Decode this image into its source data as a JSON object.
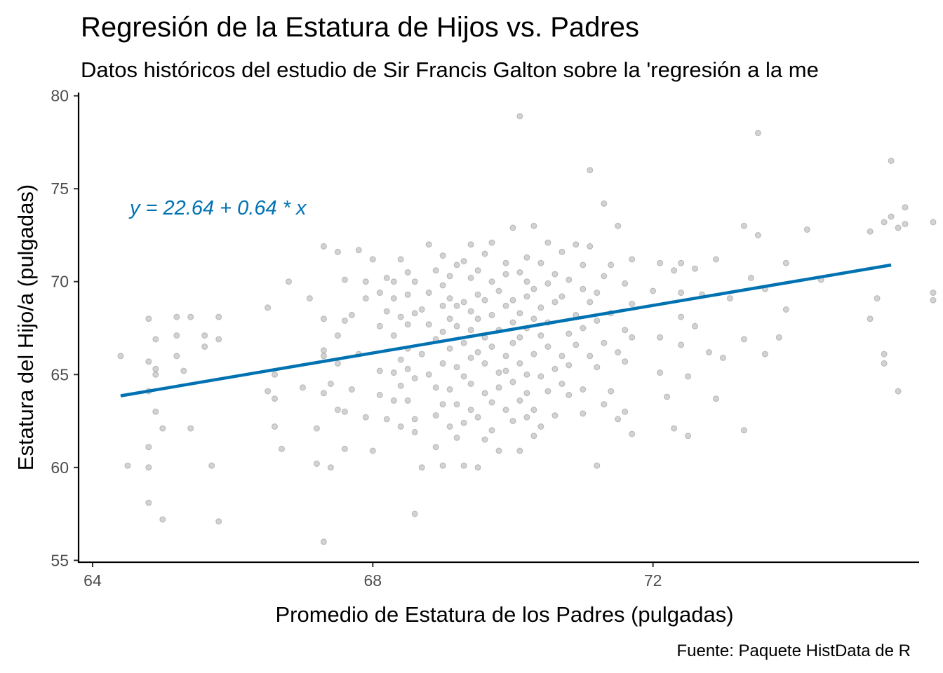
{
  "chart_data": {
    "type": "scatter",
    "title": "Regresión de la Estatura de Hijos vs. Padres",
    "subtitle": "Datos históricos del estudio de Sir Francis Galton sobre la 'regresión a la me",
    "xlabel": "Promedio de Estatura de los Padres (pulgadas)",
    "ylabel": "Estatura del Hijo/a (pulgadas)",
    "caption": "Fuente: Paquete HistData de R",
    "equation": "y = 22.64 + 0.64 * x",
    "xlim": [
      63.8,
      75.8
    ],
    "ylim": [
      54.9,
      80.1
    ],
    "xticks": [
      "64",
      "68",
      "72"
    ],
    "yticks": [
      "55",
      "60",
      "65",
      "70",
      "75",
      "80"
    ],
    "grid": false,
    "point_color": "#7f7f7f",
    "line_color": "#0072b2",
    "regression": {
      "intercept": 22.64,
      "slope": 0.64,
      "x_range": [
        64.4,
        75.4
      ]
    },
    "series": [
      {
        "points": [
          [
            64.4,
            66.0
          ],
          [
            64.5,
            60.1
          ],
          [
            64.8,
            64.1
          ],
          [
            64.8,
            65.7
          ],
          [
            64.8,
            68.0
          ],
          [
            64.8,
            61.1
          ],
          [
            64.8,
            60.0
          ],
          [
            64.8,
            58.1
          ],
          [
            64.9,
            63.0
          ],
          [
            64.9,
            65.0
          ],
          [
            64.9,
            66.9
          ],
          [
            64.9,
            65.3
          ],
          [
            65.0,
            62.1
          ],
          [
            65.0,
            57.2
          ],
          [
            65.2,
            66.0
          ],
          [
            65.2,
            68.1
          ],
          [
            65.2,
            67.1
          ],
          [
            65.3,
            65.2
          ],
          [
            65.4,
            68.1
          ],
          [
            65.4,
            62.1
          ],
          [
            65.6,
            67.1
          ],
          [
            65.6,
            66.5
          ],
          [
            65.7,
            60.1
          ],
          [
            65.8,
            66.9
          ],
          [
            65.8,
            68.1
          ],
          [
            65.8,
            57.1
          ],
          [
            66.5,
            68.6
          ],
          [
            66.5,
            64.1
          ],
          [
            66.6,
            63.7
          ],
          [
            66.6,
            62.2
          ],
          [
            66.6,
            65.0
          ],
          [
            66.7,
            61.0
          ],
          [
            66.8,
            70.0
          ],
          [
            67.1,
            69.1
          ],
          [
            67.0,
            64.3
          ],
          [
            67.2,
            62.1
          ],
          [
            67.2,
            60.2
          ],
          [
            67.3,
            66.3
          ],
          [
            67.3,
            68.0
          ],
          [
            67.3,
            71.9
          ],
          [
            67.3,
            66.0
          ],
          [
            67.3,
            64.0
          ],
          [
            67.3,
            56.0
          ],
          [
            67.4,
            60.0
          ],
          [
            67.4,
            64.5
          ],
          [
            67.5,
            67.1
          ],
          [
            67.5,
            71.6
          ],
          [
            67.5,
            65.6
          ],
          [
            67.5,
            63.1
          ],
          [
            67.6,
            63.0
          ],
          [
            67.6,
            61.0
          ],
          [
            67.6,
            67.9
          ],
          [
            67.6,
            70.1
          ],
          [
            67.7,
            68.2
          ],
          [
            67.7,
            64.2
          ],
          [
            67.8,
            71.7
          ],
          [
            67.8,
            66.1
          ],
          [
            67.9,
            62.7
          ],
          [
            67.9,
            70.0
          ],
          [
            67.9,
            69.1
          ],
          [
            68.0,
            71.2
          ],
          [
            68.0,
            60.9
          ],
          [
            68.1,
            69.4
          ],
          [
            68.1,
            65.2
          ],
          [
            68.1,
            67.6
          ],
          [
            68.1,
            63.9
          ],
          [
            68.2,
            70.2
          ],
          [
            68.2,
            62.6
          ],
          [
            68.2,
            68.4
          ],
          [
            68.3,
            70.0
          ],
          [
            68.3,
            63.6
          ],
          [
            68.3,
            65.1
          ],
          [
            68.3,
            69.1
          ],
          [
            68.3,
            67.1
          ],
          [
            68.4,
            68.1
          ],
          [
            68.4,
            71.2
          ],
          [
            68.4,
            65.8
          ],
          [
            68.4,
            62.2
          ],
          [
            68.4,
            64.4
          ],
          [
            68.5,
            67.7
          ],
          [
            68.5,
            70.5
          ],
          [
            68.5,
            63.6
          ],
          [
            68.5,
            66.4
          ],
          [
            68.5,
            69.3
          ],
          [
            68.5,
            65.3
          ],
          [
            68.6,
            68.3
          ],
          [
            68.6,
            61.9
          ],
          [
            68.6,
            62.6
          ],
          [
            68.6,
            64.8
          ],
          [
            68.6,
            70.0
          ],
          [
            68.6,
            57.5
          ],
          [
            68.7,
            68.5
          ],
          [
            68.7,
            66.1
          ],
          [
            68.7,
            60.0
          ],
          [
            68.8,
            67.7
          ],
          [
            68.8,
            72.0
          ],
          [
            68.8,
            69.4
          ],
          [
            68.8,
            65.0
          ],
          [
            68.9,
            64.3
          ],
          [
            68.9,
            66.9
          ],
          [
            68.9,
            62.8
          ],
          [
            68.9,
            70.6
          ],
          [
            68.9,
            61.1
          ],
          [
            69.0,
            68.7
          ],
          [
            69.0,
            65.6
          ],
          [
            69.0,
            63.4
          ],
          [
            69.0,
            67.3
          ],
          [
            69.0,
            69.8
          ],
          [
            69.0,
            71.4
          ],
          [
            69.0,
            60.1
          ],
          [
            69.1,
            69.1
          ],
          [
            69.1,
            66.4
          ],
          [
            69.1,
            64.2
          ],
          [
            69.1,
            62.2
          ],
          [
            69.1,
            68.0
          ],
          [
            69.1,
            70.3
          ],
          [
            69.2,
            67.6
          ],
          [
            69.2,
            65.4
          ],
          [
            69.2,
            70.9
          ],
          [
            69.2,
            63.4
          ],
          [
            69.2,
            61.6
          ],
          [
            69.2,
            68.7
          ],
          [
            69.3,
            68.9
          ],
          [
            69.3,
            64.9
          ],
          [
            69.3,
            71.1
          ],
          [
            69.3,
            66.7
          ],
          [
            69.3,
            62.4
          ],
          [
            69.3,
            60.1
          ],
          [
            69.4,
            65.9
          ],
          [
            69.4,
            68.4
          ],
          [
            69.4,
            70.2
          ],
          [
            69.4,
            63.1
          ],
          [
            69.4,
            72.0
          ],
          [
            69.4,
            67.4
          ],
          [
            69.4,
            64.5
          ],
          [
            69.5,
            69.3
          ],
          [
            69.5,
            66.2
          ],
          [
            69.5,
            62.7
          ],
          [
            69.5,
            70.6
          ],
          [
            69.5,
            68.0
          ],
          [
            69.5,
            60.0
          ],
          [
            69.6,
            67.0
          ],
          [
            69.6,
            64.0
          ],
          [
            69.6,
            71.5
          ],
          [
            69.6,
            65.6
          ],
          [
            69.6,
            69.0
          ],
          [
            69.6,
            61.5
          ],
          [
            69.7,
            68.2
          ],
          [
            69.7,
            63.5
          ],
          [
            69.7,
            66.5
          ],
          [
            69.7,
            70.0
          ],
          [
            69.7,
            72.1
          ],
          [
            69.7,
            62.0
          ],
          [
            69.8,
            67.4
          ],
          [
            69.8,
            65.1
          ],
          [
            69.8,
            69.5
          ],
          [
            69.8,
            64.3
          ],
          [
            69.8,
            60.9
          ],
          [
            69.9,
            70.4
          ],
          [
            69.9,
            68.7
          ],
          [
            69.9,
            66.0
          ],
          [
            69.9,
            63.1
          ],
          [
            69.9,
            71.0
          ],
          [
            69.9,
            65.2
          ],
          [
            70.0,
            67.8
          ],
          [
            70.0,
            64.6
          ],
          [
            70.0,
            69.0
          ],
          [
            70.0,
            62.5
          ],
          [
            70.0,
            66.7
          ],
          [
            70.0,
            72.9
          ],
          [
            70.1,
            68.3
          ],
          [
            70.1,
            65.6
          ],
          [
            70.1,
            70.5
          ],
          [
            70.1,
            63.6
          ],
          [
            70.1,
            78.9
          ],
          [
            70.1,
            67.0
          ],
          [
            70.1,
            60.9
          ],
          [
            70.2,
            69.2
          ],
          [
            70.2,
            65.0
          ],
          [
            70.2,
            71.3
          ],
          [
            70.2,
            64.0
          ],
          [
            70.2,
            67.5
          ],
          [
            70.2,
            62.7
          ],
          [
            70.2,
            70.0
          ],
          [
            70.3,
            68.0
          ],
          [
            70.3,
            66.1
          ],
          [
            70.3,
            73.0
          ],
          [
            70.3,
            63.1
          ],
          [
            70.3,
            69.6
          ],
          [
            70.3,
            61.7
          ],
          [
            70.4,
            67.1
          ],
          [
            70.4,
            64.9
          ],
          [
            70.4,
            71.0
          ],
          [
            70.4,
            68.6
          ],
          [
            70.4,
            62.2
          ],
          [
            70.5,
            69.9
          ],
          [
            70.5,
            66.5
          ],
          [
            70.5,
            64.1
          ],
          [
            70.5,
            72.1
          ],
          [
            70.5,
            67.8
          ],
          [
            70.6,
            70.4
          ],
          [
            70.6,
            65.3
          ],
          [
            70.6,
            68.9
          ],
          [
            70.6,
            62.8
          ],
          [
            70.7,
            66.0
          ],
          [
            70.7,
            71.6
          ],
          [
            70.7,
            64.5
          ],
          [
            70.7,
            69.2
          ],
          [
            70.8,
            67.2
          ],
          [
            70.8,
            63.9
          ],
          [
            70.8,
            70.1
          ],
          [
            70.8,
            65.5
          ],
          [
            70.9,
            68.2
          ],
          [
            70.9,
            72.0
          ],
          [
            70.9,
            66.6
          ],
          [
            71.0,
            69.6
          ],
          [
            71.0,
            64.2
          ],
          [
            71.0,
            67.5
          ],
          [
            71.0,
            70.9
          ],
          [
            71.0,
            62.9
          ],
          [
            71.1,
            66.0
          ],
          [
            71.1,
            68.9
          ],
          [
            71.1,
            71.9
          ],
          [
            71.1,
            76.0
          ],
          [
            71.2,
            65.4
          ],
          [
            71.2,
            69.4
          ],
          [
            71.2,
            67.9
          ],
          [
            71.2,
            60.1
          ],
          [
            71.3,
            63.4
          ],
          [
            71.3,
            70.3
          ],
          [
            71.3,
            66.7
          ],
          [
            71.3,
            74.2
          ],
          [
            71.4,
            68.3
          ],
          [
            71.4,
            64.1
          ],
          [
            71.4,
            70.9
          ],
          [
            71.5,
            73.0
          ],
          [
            71.5,
            66.2
          ],
          [
            71.5,
            62.6
          ],
          [
            71.6,
            69.9
          ],
          [
            71.6,
            67.4
          ],
          [
            71.6,
            65.7
          ],
          [
            71.6,
            63.0
          ],
          [
            71.7,
            68.8
          ],
          [
            71.7,
            71.2
          ],
          [
            71.7,
            67.0
          ],
          [
            71.7,
            61.8
          ],
          [
            72.0,
            69.5
          ],
          [
            72.1,
            71.0
          ],
          [
            72.1,
            67.0
          ],
          [
            72.1,
            65.1
          ],
          [
            72.2,
            63.8
          ],
          [
            72.3,
            70.6
          ],
          [
            72.3,
            62.1
          ],
          [
            72.4,
            69.4
          ],
          [
            72.4,
            68.1
          ],
          [
            72.4,
            66.6
          ],
          [
            72.4,
            71.0
          ],
          [
            72.5,
            64.9
          ],
          [
            72.5,
            61.7
          ],
          [
            72.6,
            70.7
          ],
          [
            72.6,
            67.6
          ],
          [
            72.7,
            69.3
          ],
          [
            72.8,
            66.2
          ],
          [
            72.9,
            63.7
          ],
          [
            72.9,
            71.2
          ],
          [
            73.0,
            65.9
          ],
          [
            73.1,
            69.1
          ],
          [
            73.3,
            73.0
          ],
          [
            73.3,
            62.0
          ],
          [
            73.3,
            66.9
          ],
          [
            73.4,
            70.2
          ],
          [
            73.5,
            72.5
          ],
          [
            73.6,
            69.6
          ],
          [
            73.5,
            78.0
          ],
          [
            73.6,
            66.1
          ],
          [
            73.8,
            67.0
          ],
          [
            73.9,
            71.0
          ],
          [
            73.9,
            68.5
          ],
          [
            74.2,
            72.8
          ],
          [
            74.4,
            70.1
          ],
          [
            75.1,
            68.0
          ],
          [
            75.1,
            72.7
          ],
          [
            75.2,
            69.1
          ],
          [
            75.3,
            66.1
          ],
          [
            75.3,
            65.6
          ],
          [
            75.3,
            73.2
          ],
          [
            75.4,
            73.5
          ],
          [
            75.4,
            76.5
          ],
          [
            75.5,
            72.9
          ],
          [
            75.5,
            64.1
          ],
          [
            75.6,
            73.1
          ],
          [
            75.6,
            74.0
          ],
          [
            76.0,
            69.4
          ],
          [
            76.0,
            73.2
          ],
          [
            76.0,
            69.0
          ]
        ]
      }
    ]
  }
}
